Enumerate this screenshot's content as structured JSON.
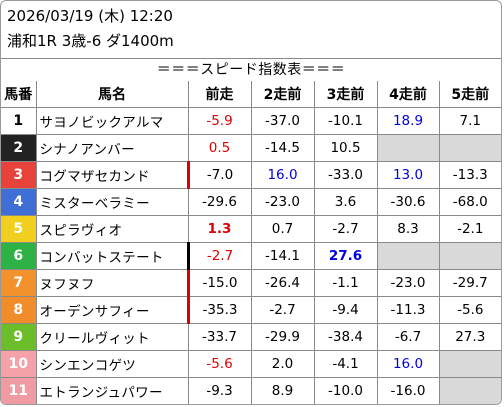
{
  "header": {
    "datetime": "2026/03/19 (木) 12:20",
    "race": "浦和1R 3歳-6 ダ1400m"
  },
  "banner": "＝＝＝スピード指数表＝＝＝",
  "columns": [
    "馬番",
    "馬名",
    "前走",
    "2走前",
    "3走前",
    "4走前",
    "5走前"
  ],
  "colors": {
    "frame1": "#ffffff",
    "frame2": "#222222",
    "frame3": "#e8433a",
    "frame4": "#3f6fd6",
    "frame5": "#f0cf1f",
    "frame6": "#2fb245",
    "frame7": "#f3912d",
    "frame8": "#f08c2a",
    "frame9": "#6cbd2a",
    "frame10": "#f4a2a8",
    "frame11": "#f09aa3",
    "highlight_red": "#e00000",
    "highlight_blue": "#0000e0",
    "blank_cell": "#d9d9d9"
  },
  "rows": [
    {
      "num": "1",
      "name": "サヨノビックアルマ",
      "s1": "-5.9",
      "s2": "-37.0",
      "s3": "-10.1",
      "s4": "18.9",
      "s5": "7.1"
    },
    {
      "num": "2",
      "name": "シナノアンバー",
      "s1": "0.5",
      "s2": "-14.5",
      "s3": "10.5",
      "s4": "",
      "s5": ""
    },
    {
      "num": "3",
      "name": "コグマザセカンド",
      "s1": "-7.0",
      "s2": "16.0",
      "s3": "-33.0",
      "s4": "13.0",
      "s5": "-13.3"
    },
    {
      "num": "4",
      "name": "ミスターベラミー",
      "s1": "-29.6",
      "s2": "-23.0",
      "s3": "3.6",
      "s4": "-30.6",
      "s5": "-68.0"
    },
    {
      "num": "5",
      "name": "スピラヴィオ",
      "s1": "1.3",
      "s2": "0.7",
      "s3": "-2.7",
      "s4": "8.3",
      "s5": "-2.1"
    },
    {
      "num": "6",
      "name": "コンバットステート",
      "s1": "-2.7",
      "s2": "-14.1",
      "s3": "27.6",
      "s4": "",
      "s5": ""
    },
    {
      "num": "7",
      "name": "ヌフヌフ",
      "s1": "-15.0",
      "s2": "-26.4",
      "s3": "-1.1",
      "s4": "-23.0",
      "s5": "-29.7"
    },
    {
      "num": "8",
      "name": "オーデンサフィー",
      "s1": "-35.3",
      "s2": "-2.7",
      "s3": "-9.4",
      "s4": "-11.3",
      "s5": "-5.6"
    },
    {
      "num": "9",
      "name": "クリールヴィット",
      "s1": "-33.7",
      "s2": "-29.9",
      "s3": "-38.4",
      "s4": "-6.7",
      "s5": "27.3"
    },
    {
      "num": "10",
      "name": "シンエンコゲツ",
      "s1": "-5.6",
      "s2": "2.0",
      "s3": "-4.1",
      "s4": "16.0",
      "s5": ""
    },
    {
      "num": "11",
      "name": "エトランジュパワー",
      "s1": "-9.3",
      "s2": "8.9",
      "s3": "-10.0",
      "s4": "-16.0",
      "s5": ""
    }
  ]
}
